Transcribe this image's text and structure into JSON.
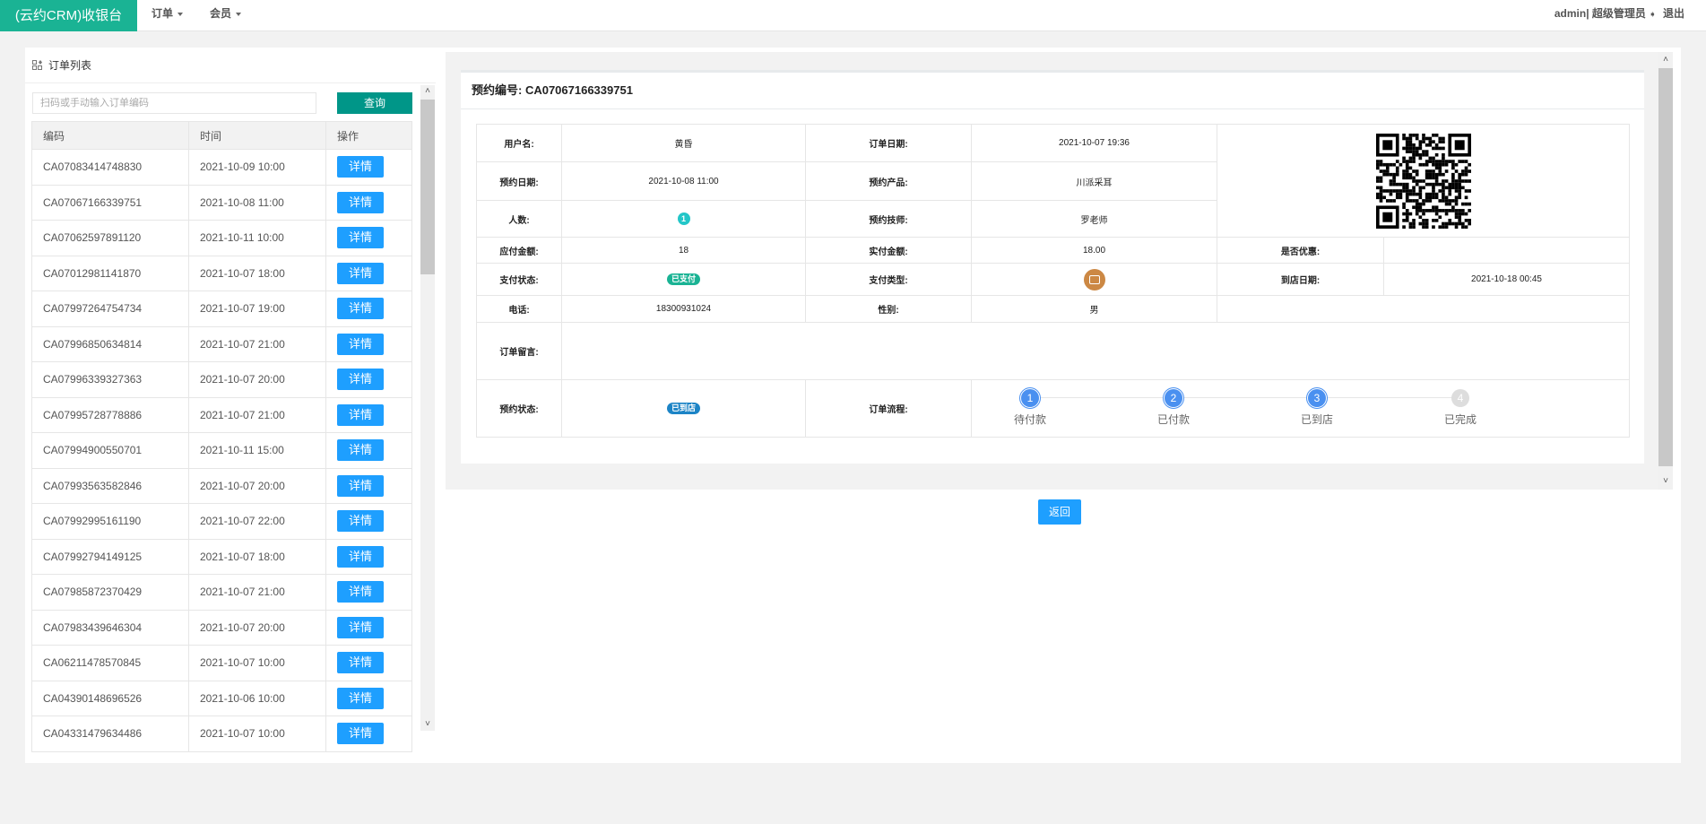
{
  "nav": {
    "brand": "(云约CRM)收银台",
    "menus": [
      {
        "label": "订单"
      },
      {
        "label": "会员"
      }
    ],
    "user": "admin| 超级管理员",
    "logout": "退出"
  },
  "order_list": {
    "title": "订单列表",
    "search_placeholder": "扫码或手动输入订单编码",
    "query_label": "查询",
    "columns": [
      "编码",
      "时间",
      "操作"
    ],
    "detail_label": "详情",
    "rows": [
      {
        "code": "CA07083414748830",
        "time": "2021-10-09 10:00"
      },
      {
        "code": "CA07067166339751",
        "time": "2021-10-08 11:00"
      },
      {
        "code": "CA07062597891120",
        "time": "2021-10-11 10:00"
      },
      {
        "code": "CA07012981141870",
        "time": "2021-10-07 18:00"
      },
      {
        "code": "CA07997264754734",
        "time": "2021-10-07 19:00"
      },
      {
        "code": "CA07996850634814",
        "time": "2021-10-07 21:00"
      },
      {
        "code": "CA07996339327363",
        "time": "2021-10-07 20:00"
      },
      {
        "code": "CA07995728778886",
        "time": "2021-10-07 21:00"
      },
      {
        "code": "CA07994900550701",
        "time": "2021-10-11 15:00"
      },
      {
        "code": "CA07993563582846",
        "time": "2021-10-07 20:00"
      },
      {
        "code": "CA07992995161190",
        "time": "2021-10-07 22:00"
      },
      {
        "code": "CA07992794149125",
        "time": "2021-10-07 18:00"
      },
      {
        "code": "CA07985872370429",
        "time": "2021-10-07 21:00"
      },
      {
        "code": "CA07983439646304",
        "time": "2021-10-07 20:00"
      },
      {
        "code": "CA06211478570845",
        "time": "2021-10-07 10:00"
      },
      {
        "code": "CA04390148696526",
        "time": "2021-10-06 10:00"
      },
      {
        "code": "CA04331479634486",
        "time": "2021-10-07 10:00"
      }
    ]
  },
  "detail": {
    "header": "预约编号: CA07067166339751",
    "labels": {
      "username": "用户名:",
      "order_date": "订单日期:",
      "appt_date": "预约日期:",
      "product": "预约产品:",
      "people": "人数:",
      "tech": "预约技师:",
      "due": "应付金额:",
      "paid": "实付金额:",
      "discount": "是否优惠:",
      "pay_status": "支付状态:",
      "pay_type": "支付类型:",
      "arrive_date": "到店日期:",
      "phone": "电话:",
      "gender": "性别:",
      "message": "订单留言:",
      "appt_status": "预约状态:",
      "flow": "订单流程:"
    },
    "values": {
      "username": "黄昏",
      "order_date": "2021-10-07 19:36",
      "appt_date": "2021-10-08 11:00",
      "product": "川派采耳",
      "people": "1",
      "tech": "罗老师",
      "due": "18",
      "paid": "18.00",
      "discount": "",
      "pay_status": "已支付",
      "pay_type_icon": "wallet-icon",
      "arrive_date": "2021-10-18 00:45",
      "phone": "18300931024",
      "gender": "男",
      "message": "",
      "appt_status": "已到店"
    },
    "colors": {
      "pay_status": "#1ab394",
      "appt_status": "#1c84c6",
      "people": "#23c6c8",
      "pay_type": "#cc8844",
      "step_active": "#4a90f0",
      "step_inactive": "#dddddd"
    },
    "steps": [
      {
        "num": "1",
        "label": "待付款",
        "done": true
      },
      {
        "num": "2",
        "label": "已付款",
        "done": true
      },
      {
        "num": "3",
        "label": "已到店",
        "done": true
      },
      {
        "num": "4",
        "label": "已完成",
        "done": false
      }
    ],
    "back_label": "返回"
  }
}
